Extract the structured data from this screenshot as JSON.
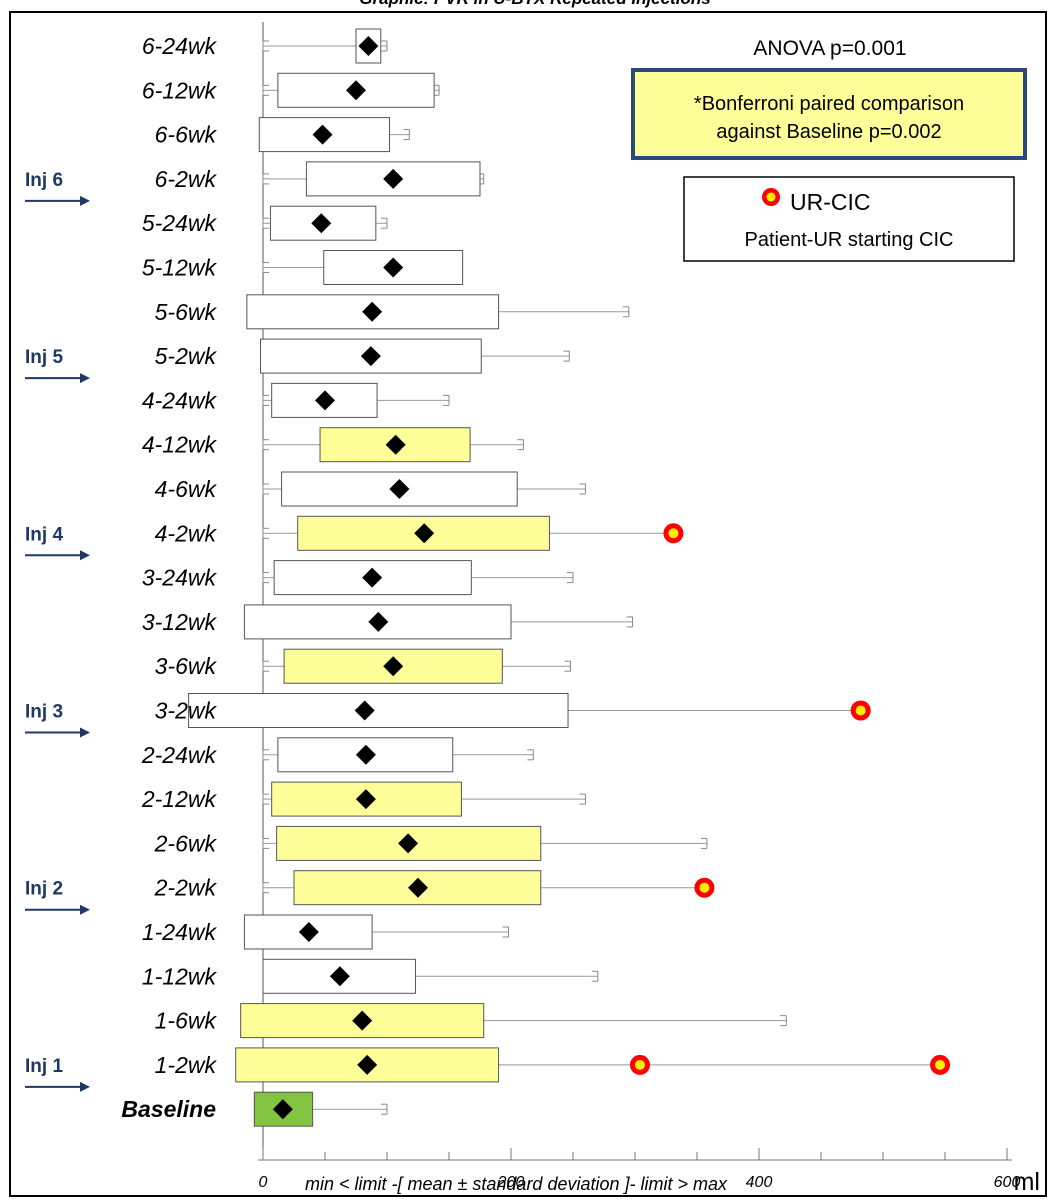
{
  "chart_data": {
    "type": "box-whisker",
    "title": "Graphic: PVR in U-BTX Repeated Injections",
    "xlabel": "ml",
    "caption": "min < limit -[ mean ± standard deviation ]- limit > max",
    "xlim": [
      0,
      600
    ],
    "x_ticks": [
      0,
      200,
      400,
      600
    ],
    "annotations": {
      "anova": "ANOVA p=0.001",
      "bonferroni_line1": "*Bonferroni paired comparison",
      "bonferroni_line2": "against Baseline p=0.002"
    },
    "legend": {
      "marker_label": "UR-CIC",
      "description": "Patient-UR starting CIC",
      "position": "top-right"
    },
    "colors": {
      "significant_fill": "#ffff99",
      "baseline_fill": "#82c341",
      "normal_fill": "#ffffff",
      "arrow": "#1f3864",
      "annotation_border": "#2b4a7a",
      "outlier_outer": "#ff0000",
      "outlier_inner": "#ffee00"
    },
    "injection_markers": [
      {
        "label": "Inj 6",
        "before": "6-2wk"
      },
      {
        "label": "Inj 5",
        "before": "5-2wk"
      },
      {
        "label": "Inj 4",
        "before": "4-2wk"
      },
      {
        "label": "Inj 3",
        "before": "3-2wk"
      },
      {
        "label": "Inj 2",
        "before": "2-2wk"
      },
      {
        "label": "Inj 1",
        "before": "1-2wk"
      }
    ],
    "rows": [
      {
        "label": "6-24wk",
        "mean": 85,
        "sd_low": 75,
        "sd_high": 95,
        "max": 100,
        "highlight": "none",
        "outliers": []
      },
      {
        "label": "6-12wk",
        "mean": 75,
        "sd_low": 12,
        "sd_high": 138,
        "max": 142,
        "highlight": "none",
        "outliers": []
      },
      {
        "label": "6-6wk",
        "mean": 48,
        "sd_low": -3,
        "sd_high": 102,
        "max": 118,
        "highlight": "none",
        "outliers": []
      },
      {
        "label": "6-2wk",
        "mean": 105,
        "sd_low": 35,
        "sd_high": 175,
        "max": 178,
        "highlight": "none",
        "outliers": []
      },
      {
        "label": "5-24wk",
        "mean": 47,
        "sd_low": 6,
        "sd_high": 91,
        "max": 100,
        "highlight": "none",
        "outliers": []
      },
      {
        "label": "5-12wk",
        "mean": 105,
        "sd_low": 49,
        "sd_high": 161,
        "max": 152,
        "highlight": "none",
        "outliers": []
      },
      {
        "label": "5-6wk",
        "mean": 88,
        "sd_low": -13,
        "sd_high": 190,
        "max": 295,
        "highlight": "none",
        "outliers": []
      },
      {
        "label": "5-2wk",
        "mean": 87,
        "sd_low": -2,
        "sd_high": 176,
        "max": 247,
        "highlight": "none",
        "outliers": []
      },
      {
        "label": "4-24wk",
        "mean": 50,
        "sd_low": 7,
        "sd_high": 92,
        "max": 150,
        "highlight": "none",
        "outliers": []
      },
      {
        "label": "4-12wk",
        "mean": 107,
        "sd_low": 46,
        "sd_high": 167,
        "max": 210,
        "highlight": "yellow",
        "outliers": []
      },
      {
        "label": "4-6wk",
        "mean": 110,
        "sd_low": 15,
        "sd_high": 205,
        "max": 260,
        "highlight": "none",
        "outliers": []
      },
      {
        "label": "4-2wk",
        "mean": 130,
        "sd_low": 28,
        "sd_high": 231,
        "max": 330,
        "highlight": "yellow",
        "outliers": [
          331
        ]
      },
      {
        "label": "3-24wk",
        "mean": 88,
        "sd_low": 9,
        "sd_high": 168,
        "max": 250,
        "highlight": "none",
        "outliers": []
      },
      {
        "label": "3-12wk",
        "mean": 93,
        "sd_low": -15,
        "sd_high": 200,
        "max": 298,
        "highlight": "none",
        "outliers": []
      },
      {
        "label": "3-6wk",
        "mean": 105,
        "sd_low": 17,
        "sd_high": 193,
        "max": 248,
        "highlight": "yellow",
        "outliers": []
      },
      {
        "label": "3-2wk",
        "mean": 82,
        "sd_low": -60,
        "sd_high": 246,
        "max": 480,
        "highlight": "none",
        "outliers": [
          482
        ]
      },
      {
        "label": "2-24wk",
        "mean": 83,
        "sd_low": 12,
        "sd_high": 153,
        "max": 218,
        "highlight": "none",
        "outliers": []
      },
      {
        "label": "2-12wk",
        "mean": 83,
        "sd_low": 7,
        "sd_high": 160,
        "max": 260,
        "highlight": "yellow",
        "outliers": []
      },
      {
        "label": "2-6wk",
        "mean": 117,
        "sd_low": 11,
        "sd_high": 224,
        "max": 358,
        "highlight": "yellow",
        "outliers": []
      },
      {
        "label": "2-2wk",
        "mean": 125,
        "sd_low": 25,
        "sd_high": 224,
        "max": 355,
        "highlight": "yellow",
        "outliers": [
          356
        ]
      },
      {
        "label": "1-24wk",
        "mean": 37,
        "sd_low": -15,
        "sd_high": 88,
        "max": 198,
        "highlight": "none",
        "outliers": []
      },
      {
        "label": "1-12wk",
        "mean": 62,
        "sd_low": 0,
        "sd_high": 123,
        "max": 270,
        "highlight": "none",
        "outliers": []
      },
      {
        "label": "1-6wk",
        "mean": 80,
        "sd_low": -18,
        "sd_high": 178,
        "max": 422,
        "highlight": "yellow",
        "outliers": []
      },
      {
        "label": "1-2wk",
        "mean": 84,
        "sd_low": -22,
        "sd_high": 190,
        "max": 546,
        "highlight": "yellow",
        "outliers": [
          304,
          546
        ]
      },
      {
        "label": "Baseline",
        "mean": 16,
        "sd_low": -7,
        "sd_high": 40,
        "max": 100,
        "highlight": "green",
        "outliers": []
      }
    ]
  }
}
